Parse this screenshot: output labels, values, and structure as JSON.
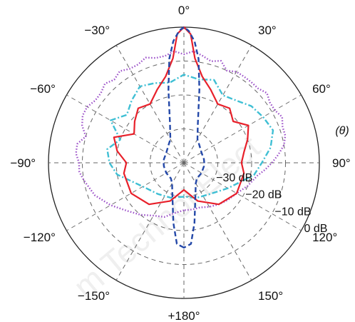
{
  "chart_data": {
    "type": "polar",
    "angle_labels": [
      "0°",
      "30°",
      "60°",
      "90°",
      "120°",
      "150°",
      "+180°",
      "−150°",
      "−120°",
      "−90°",
      "−60°",
      "−30°"
    ],
    "angle_values_deg": [
      0,
      30,
      60,
      90,
      120,
      150,
      180,
      -150,
      -120,
      -90,
      -60,
      -30
    ],
    "theta_label": "(θ)",
    "radial_labels": [
      "−30 dB",
      "−20 dB",
      "−10 dB",
      "0 dB"
    ],
    "radial_values_db": [
      -30,
      -20,
      -10,
      0
    ],
    "rlim_db": [
      -40,
      0
    ],
    "grid": true,
    "watermark": "m Technol Elect",
    "series": [
      {
        "color": "#9b4fc8",
        "style": "dotted",
        "angle_deg": [
          -180,
          -170,
          -160,
          -150,
          -140,
          -130,
          -120,
          -110,
          -100,
          -95,
          -90,
          -85,
          -80,
          -75,
          -70,
          -65,
          -60,
          -55,
          -50,
          -45,
          -40,
          -35,
          -30,
          -25,
          -20,
          -15,
          -10,
          -5,
          0,
          5,
          10,
          15,
          20,
          25,
          30,
          35,
          40,
          45,
          50,
          55,
          60,
          65,
          70,
          75,
          80,
          85,
          90,
          95,
          100,
          110,
          120,
          130,
          140,
          150,
          160,
          170,
          180
        ],
        "gain_db": [
          -26,
          -25,
          -23,
          -22,
          -20,
          -18,
          -15,
          -12,
          -10,
          -9,
          -9,
          -8,
          -8,
          -10,
          -8,
          -7,
          -7,
          -8,
          -8,
          -7,
          -8,
          -7,
          -8,
          -8,
          -7,
          -8,
          -8,
          -7,
          -8,
          -7,
          -8,
          -9,
          -8,
          -10,
          -9,
          -9,
          -9,
          -9,
          -8,
          -9,
          -9,
          -8,
          -9,
          -9,
          -10,
          -12,
          -14,
          -16,
          -18,
          -20,
          -22,
          -23,
          -24,
          -25,
          -26,
          -26,
          -26
        ]
      },
      {
        "color": "#3fbfd4",
        "style": "dash-dot",
        "angle_deg": [
          -180,
          -160,
          -140,
          -120,
          -100,
          -90,
          -80,
          -70,
          -60,
          -50,
          -40,
          -30,
          -20,
          -10,
          0,
          10,
          20,
          30,
          40,
          50,
          60,
          70,
          80,
          90,
          100,
          120,
          140,
          160,
          180
        ],
        "gain_db": [
          -30,
          -29,
          -28,
          -26,
          -20,
          -18,
          -17,
          -20,
          -15,
          -18,
          -16,
          -14,
          -15,
          -16,
          -14,
          -15,
          -14,
          -17,
          -16,
          -14,
          -13,
          -12,
          -14,
          -17,
          -19,
          -25,
          -28,
          -29,
          -30
        ]
      },
      {
        "color": "#e8202a",
        "style": "solid",
        "angle_deg": [
          -180,
          -160,
          -140,
          -120,
          -100,
          -90,
          -80,
          -70,
          -60,
          -50,
          -40,
          -30,
          -20,
          -12,
          -6,
          -3,
          0,
          3,
          6,
          12,
          20,
          30,
          40,
          50,
          60,
          70,
          80,
          90,
          100,
          120,
          140,
          160,
          180
        ],
        "gain_db": [
          -32,
          -28,
          -24,
          -22,
          -22,
          -23,
          -20,
          -18,
          -23,
          -21,
          -19,
          -20,
          -17,
          -14,
          -9,
          -2,
          0,
          -2,
          -9,
          -14,
          -17,
          -20,
          -19,
          -21,
          -18,
          -20,
          -22,
          -23,
          -22,
          -22,
          -24,
          -28,
          -32
        ]
      },
      {
        "color": "#2448a8",
        "style": "dashed",
        "angle_deg": [
          -180,
          -175,
          -170,
          -160,
          -150,
          -140,
          -120,
          -100,
          -90,
          -80,
          -60,
          -40,
          -30,
          -20,
          -12,
          -8,
          -5,
          -2,
          0,
          2,
          5,
          8,
          12,
          20,
          30,
          40,
          60,
          80,
          90,
          100,
          120,
          140,
          150,
          160,
          170,
          175,
          180
        ],
        "gain_db": [
          -15,
          -16,
          -22,
          -30,
          -33,
          -34,
          -34,
          -34,
          -34,
          -34,
          -34,
          -33,
          -32,
          -28,
          -18,
          -9,
          -4,
          -1,
          0,
          -1,
          -4,
          -9,
          -18,
          -28,
          -32,
          -33,
          -34,
          -34,
          -34,
          -34,
          -34,
          -34,
          -33,
          -30,
          -22,
          -16,
          -15
        ]
      }
    ]
  }
}
